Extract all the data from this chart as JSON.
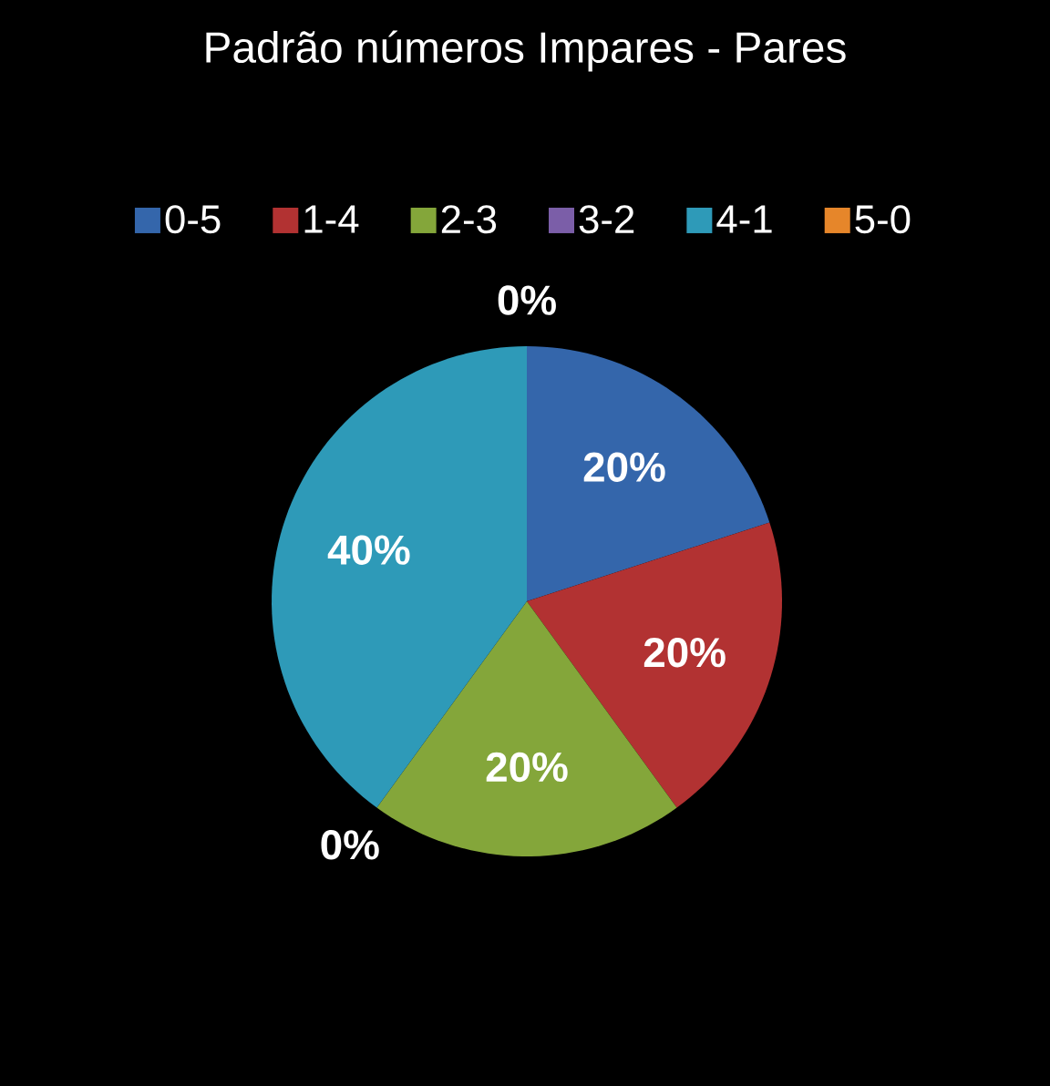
{
  "chart_data": {
    "type": "pie",
    "title": "Padrão números Impares - Pares",
    "categories": [
      "0-5",
      "1-4",
      "2-3",
      "3-2",
      "4-1",
      "5-0"
    ],
    "values": [
      20,
      20,
      20,
      0,
      40,
      0
    ],
    "colors": [
      "#3466ab",
      "#b23232",
      "#84a63a",
      "#7b5ea8",
      "#2e9ab8",
      "#e6862a"
    ],
    "value_labels": [
      "20%",
      "20%",
      "20%",
      "0%",
      "40%",
      "0%"
    ],
    "legend": "top"
  }
}
